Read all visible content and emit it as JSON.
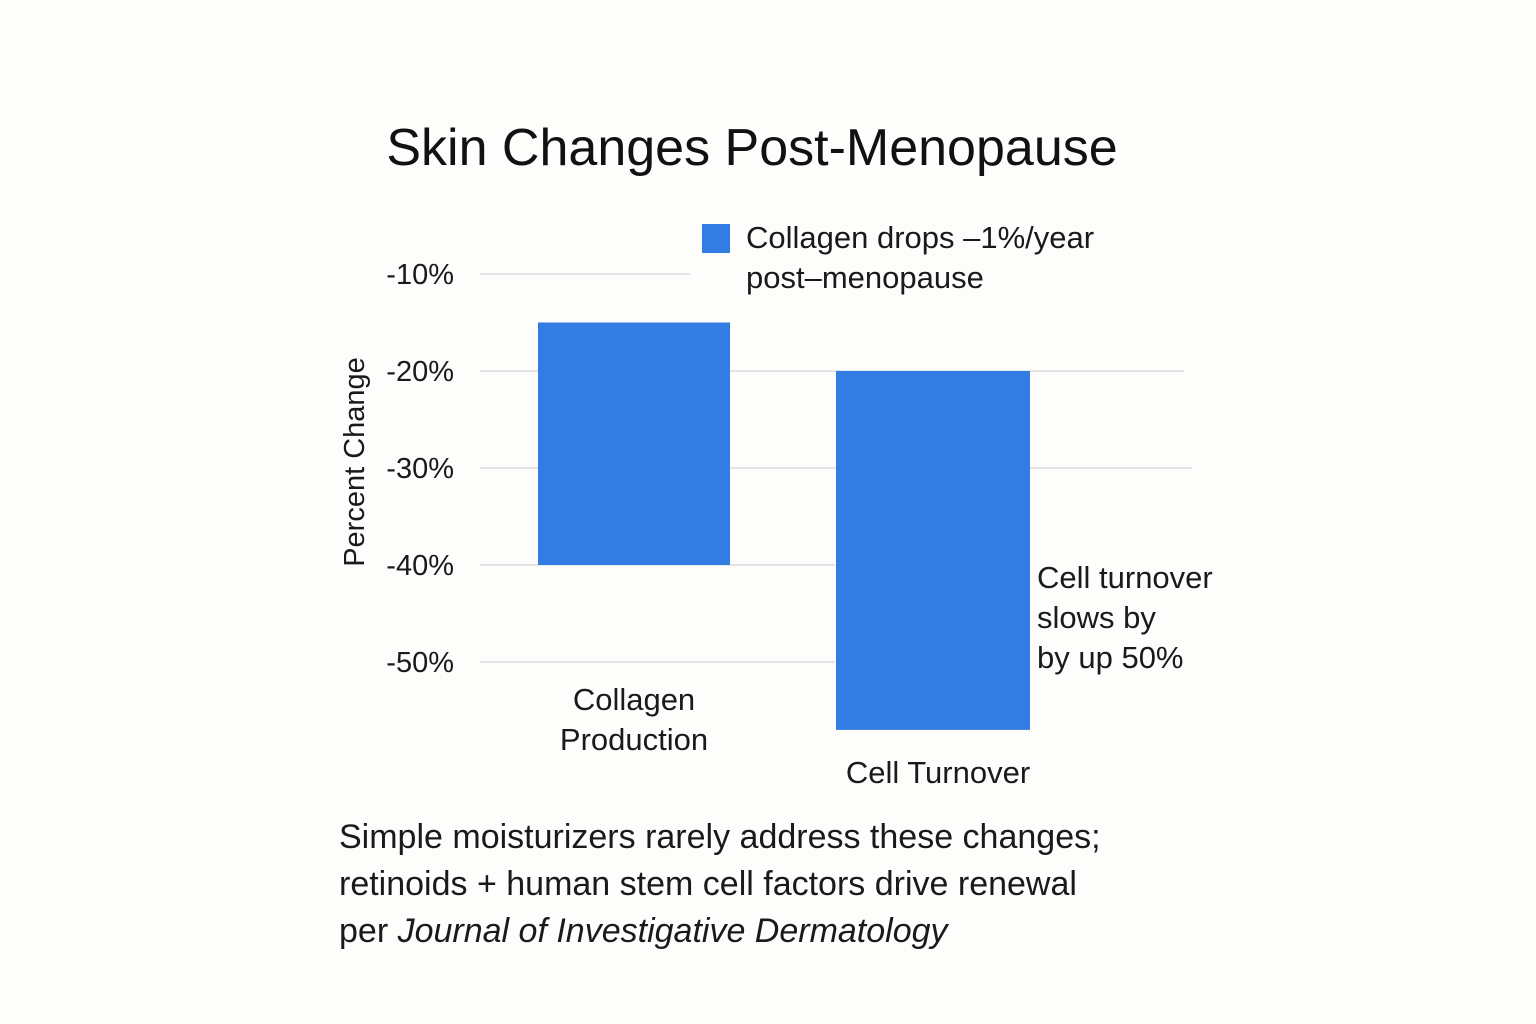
{
  "chart_data": {
    "type": "bar",
    "title": "Skin Changes Post-Menopause",
    "ylabel": "Percent Change",
    "xlabel": "",
    "categories": [
      {
        "lines": [
          "Collagen",
          "Production"
        ]
      },
      {
        "lines": [
          "Cell Turnover"
        ]
      }
    ],
    "bars": [
      {
        "top": -15,
        "bottom": -40
      },
      {
        "top": -20,
        "bottom": -57
      }
    ],
    "y_ticks": [
      {
        "value": -10,
        "label": "-10%"
      },
      {
        "value": -20,
        "label": "-20%"
      },
      {
        "value": -30,
        "label": "-30%"
      },
      {
        "value": -40,
        "label": "-40%"
      },
      {
        "value": -50,
        "label": "-50%"
      }
    ],
    "ylim": [
      -57,
      -10
    ],
    "grid": true,
    "legend": {
      "placement": "top-right",
      "lines": [
        "Collagen drops –1%/year",
        "post–menopause"
      ]
    },
    "annotation": {
      "lines": [
        "Cell turnover",
        "slows by",
        "by up 50%"
      ]
    },
    "color": "#337ce2"
  },
  "footnote": {
    "line1": "Simple moisturizers rarely address these changes;",
    "line2": "retinoids + human stem cell factors drive renewal",
    "line3_prefix": "per ",
    "line3_italic": "Journal of Investigative Dermatology"
  }
}
